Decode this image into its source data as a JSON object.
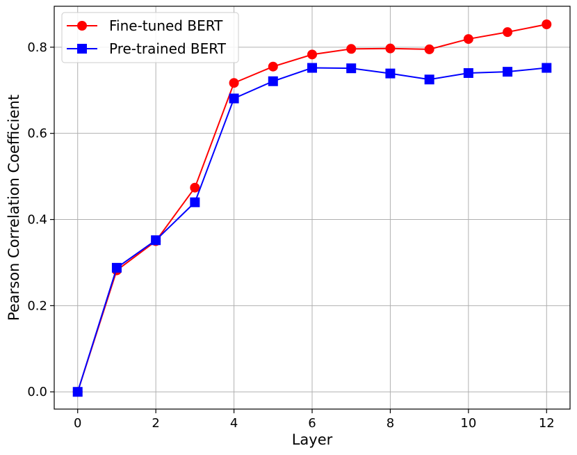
{
  "chart_data": {
    "type": "line",
    "xlabel": "Layer",
    "ylabel": "Pearson Correlation Coefficient",
    "x": [
      0,
      1,
      2,
      3,
      4,
      5,
      6,
      7,
      8,
      9,
      10,
      11,
      12
    ],
    "xlim": [
      -0.6,
      12.6
    ],
    "ylim": [
      -0.04,
      0.895
    ],
    "xticks": [
      0,
      2,
      4,
      6,
      8,
      10,
      12
    ],
    "xtick_labels": [
      "0",
      "2",
      "4",
      "6",
      "8",
      "10",
      "12"
    ],
    "yticks": [
      0.0,
      0.2,
      0.4,
      0.6,
      0.8
    ],
    "ytick_labels": [
      "0.0",
      "0.2",
      "0.4",
      "0.6",
      "0.8"
    ],
    "grid": true,
    "legend_position": "top-left",
    "series": [
      {
        "name": "Fine-tuned BERT",
        "color": "#ff0000",
        "marker": "circle",
        "values": [
          0.0,
          0.282,
          0.35,
          0.474,
          0.717,
          0.755,
          0.783,
          0.796,
          0.797,
          0.795,
          0.819,
          0.835,
          0.853
        ]
      },
      {
        "name": "Pre-trained BERT",
        "color": "#0000ff",
        "marker": "square",
        "values": [
          0.0,
          0.288,
          0.352,
          0.44,
          0.681,
          0.721,
          0.752,
          0.751,
          0.739,
          0.725,
          0.74,
          0.743,
          0.752
        ]
      }
    ]
  }
}
